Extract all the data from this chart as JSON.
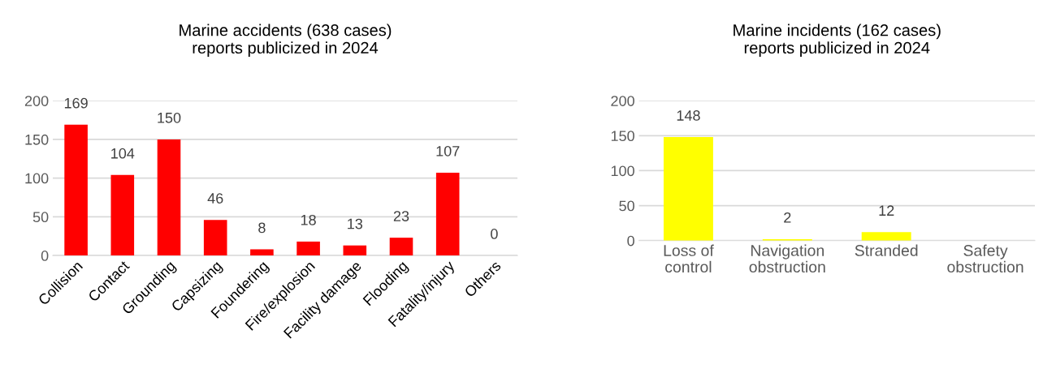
{
  "chart_data": [
    {
      "type": "bar",
      "title": "Marine accidents (638 cases)\nreports publicized in 2024",
      "categories": [
        "Collision",
        "Contact",
        "Grounding",
        "Capsizing",
        "Foundering",
        "Fire/explosion",
        "Facility damage",
        "Flooding",
        "Fatality/injury",
        "Others"
      ],
      "values": [
        169,
        104,
        150,
        46,
        8,
        18,
        13,
        23,
        107,
        0
      ],
      "color": "#ff0000",
      "ylim": [
        0,
        200
      ],
      "yticks": [
        0,
        50,
        100,
        150,
        200
      ],
      "grid": "y",
      "data_labels": true
    },
    {
      "type": "bar",
      "title": "Marine incidents (162 cases)\nreports publicized in 2024",
      "categories": [
        "Loss of\ncontrol",
        "Navigation\nobstruction",
        "Stranded",
        "Safety\nobstruction"
      ],
      "values": [
        148,
        2,
        12,
        0
      ],
      "value_labels": [
        "148",
        "2",
        "12",
        null
      ],
      "color": "#ffff00",
      "ylim": [
        0,
        200
      ],
      "yticks": [
        0,
        50,
        100,
        150,
        200
      ],
      "grid": "y"
    }
  ]
}
